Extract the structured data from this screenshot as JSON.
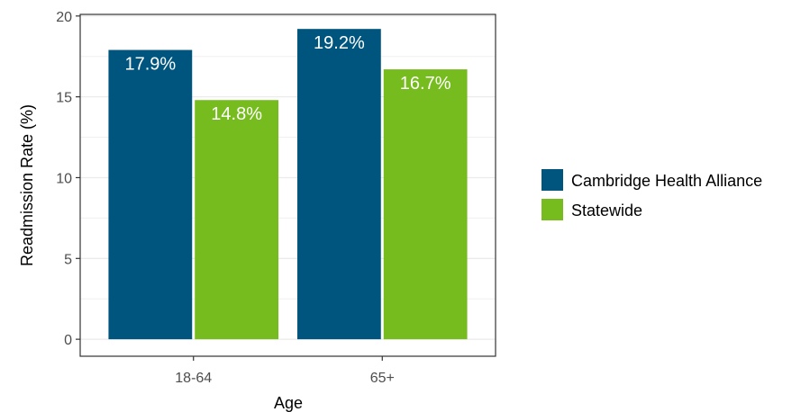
{
  "chart_data": {
    "type": "bar",
    "title": "",
    "xlabel": "Age",
    "ylabel": "Readmission Rate (%)",
    "categories": [
      "18-64",
      "65+"
    ],
    "ylim": [
      0,
      20
    ],
    "yticks": [
      "0",
      "5",
      "10",
      "15",
      "20"
    ],
    "grid": true,
    "legend_position": "right",
    "series": [
      {
        "name": "Cambridge Health Alliance",
        "color": "#00557f",
        "values": [
          17.9,
          19.2
        ],
        "labels": [
          "17.9%",
          "19.2%"
        ]
      },
      {
        "name": "Statewide",
        "color": "#77bc1f",
        "values": [
          14.8,
          16.7
        ],
        "labels": [
          "14.8%",
          "16.7%"
        ]
      }
    ]
  }
}
